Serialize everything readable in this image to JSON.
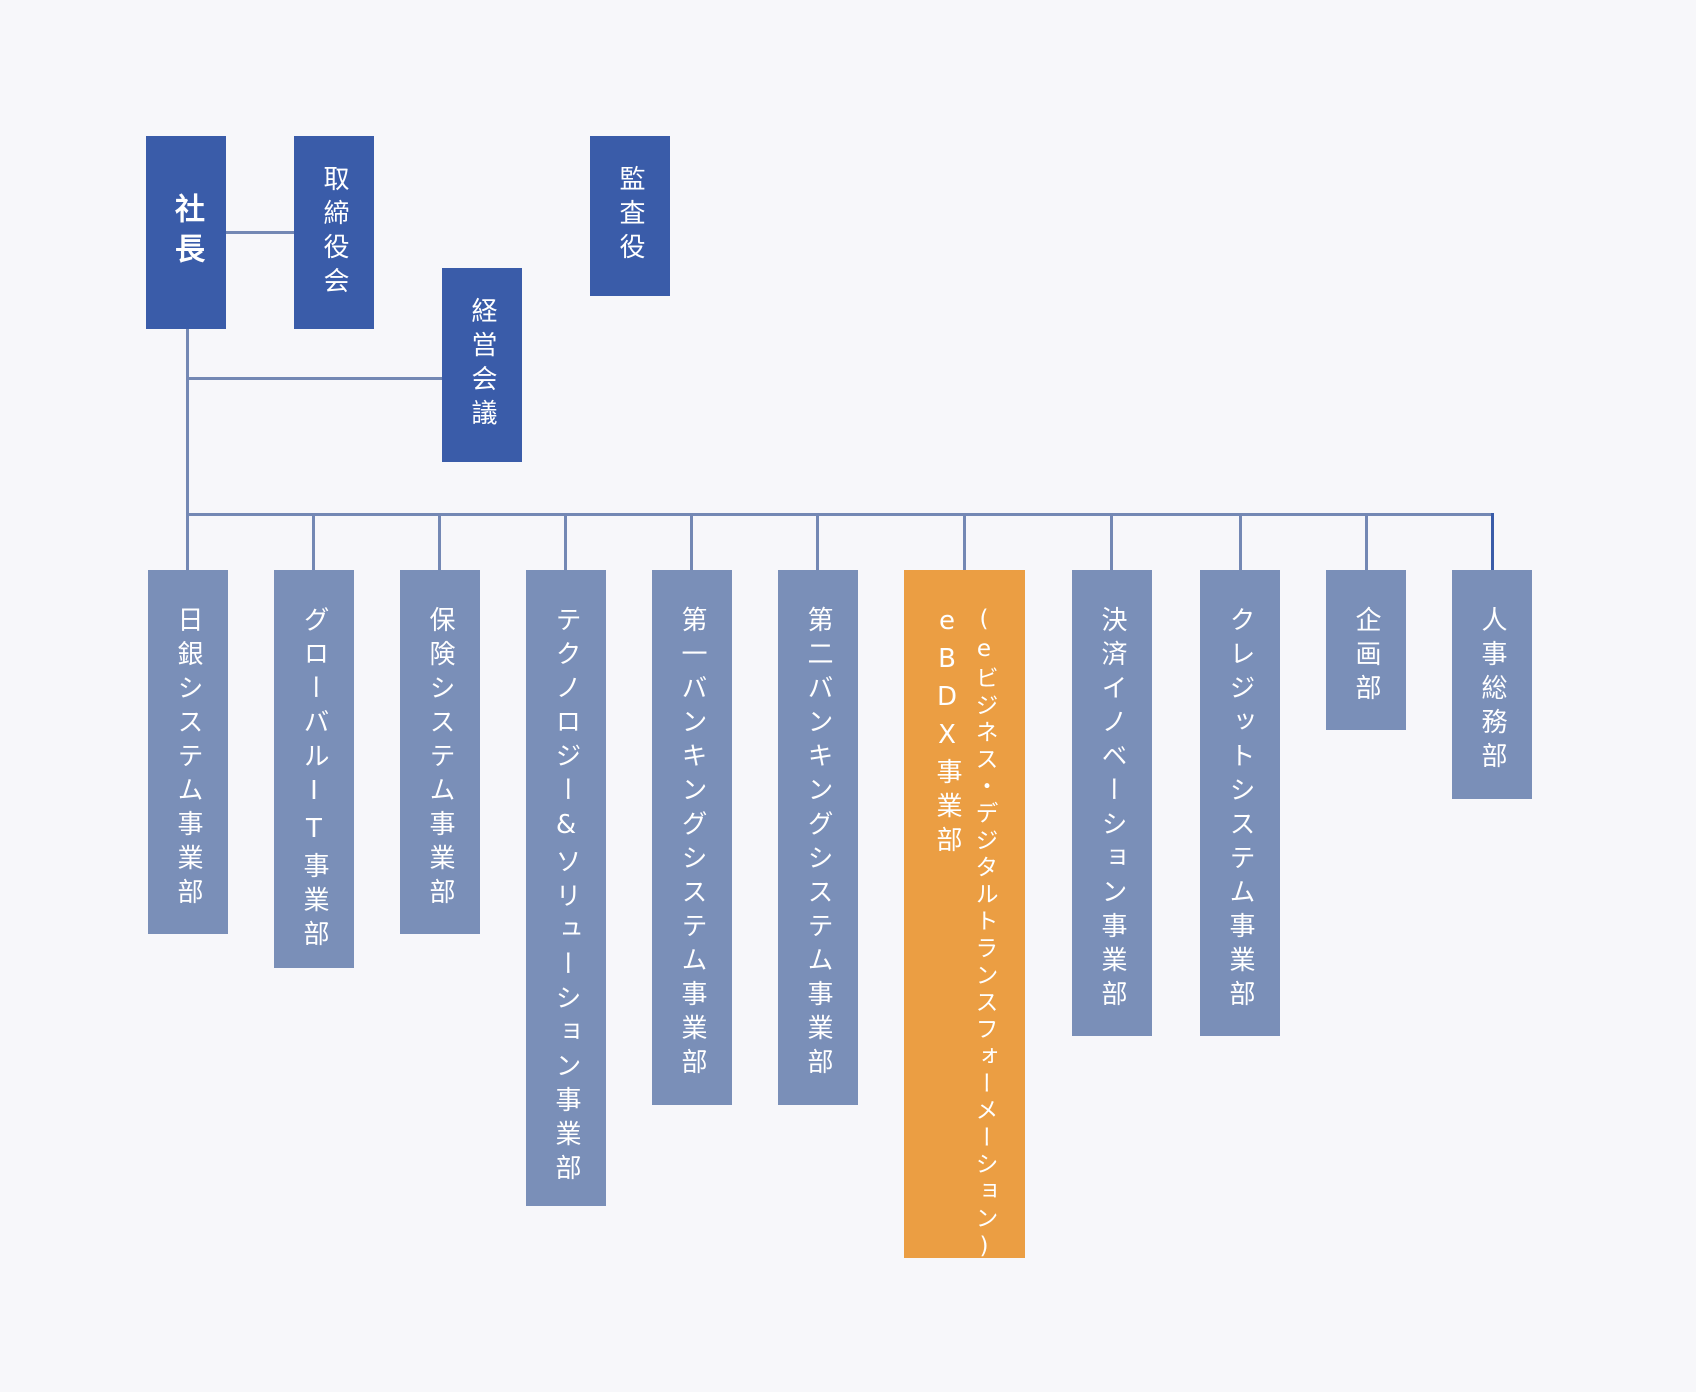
{
  "top_units": {
    "president": "社長",
    "board": "取締役会",
    "management_meeting": "経営会議",
    "auditor": "監査役"
  },
  "departments": [
    "日銀システム事業部",
    "グローバルIT事業部",
    "保険システム事業部",
    "テクノロジー&ソリューション事業部",
    "第一バンキングシステム事業部",
    "第二バンキングシステム事業部",
    "eBDX事業部",
    "決済イノベーション事業部",
    "クレジットシステム事業部",
    "企画部",
    "人事総務部"
  ],
  "highlight_department": {
    "name": "eBDX事業部",
    "subtitle": "(eビジネス・デジタルトランスフォーメーション)"
  },
  "colors": {
    "top_box": "#3a5ca9",
    "department_box": "#7a8fb8",
    "highlight_box": "#eb9e43",
    "connector": "#7488b4",
    "background": "#f7f7fa"
  }
}
